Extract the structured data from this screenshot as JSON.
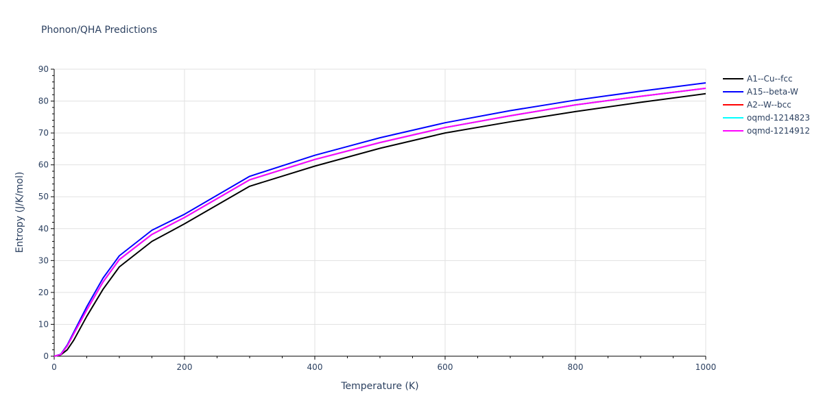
{
  "title": "Phonon/QHA Predictions",
  "chart_data": {
    "type": "line",
    "title": "Phonon/QHA Predictions",
    "xlabel": "Temperature (K)",
    "ylabel": "Entropy (J/K/mol)",
    "xlim": [
      0,
      1000
    ],
    "ylim": [
      0,
      90
    ],
    "xticks": [
      0,
      200,
      400,
      600,
      800,
      1000
    ],
    "yticks": [
      0,
      10,
      20,
      30,
      40,
      50,
      60,
      70,
      80,
      90
    ],
    "grid": true,
    "legend_position": "right",
    "x": [
      0,
      10,
      20,
      30,
      50,
      75,
      100,
      150,
      200,
      300,
      400,
      500,
      600,
      700,
      800,
      900,
      1000
    ],
    "series": [
      {
        "name": "A1--Cu--fcc",
        "color": "#000000",
        "values": [
          0,
          0.4,
          2.0,
          5.0,
          12.5,
          21.0,
          28.0,
          36.0,
          41.5,
          53.3,
          59.6,
          65.2,
          70.0,
          73.5,
          76.7,
          79.6,
          82.3
        ]
      },
      {
        "name": "A15--beta-W",
        "color": "#0000ff",
        "values": [
          0,
          0.6,
          3.5,
          7.5,
          15.5,
          24.5,
          31.5,
          39.5,
          44.5,
          56.4,
          63.0,
          68.5,
          73.2,
          77.0,
          80.3,
          83.1,
          85.7
        ]
      },
      {
        "name": "A2--W--bcc",
        "color": "#ff0000",
        "values": [
          0,
          0.5,
          3.2,
          7.0,
          14.5,
          23.3,
          30.3,
          38.2,
          43.5,
          55.3,
          61.7,
          67.0,
          71.7,
          75.4,
          78.8,
          81.5,
          84.0
        ]
      },
      {
        "name": "oqmd-1214823",
        "color": "#00ffff",
        "values": [
          0,
          0.5,
          3.2,
          7.0,
          14.5,
          23.3,
          30.3,
          38.2,
          43.5,
          55.3,
          61.7,
          67.0,
          71.7,
          75.4,
          78.8,
          81.5,
          84.0
        ]
      },
      {
        "name": "oqmd-1214912",
        "color": "#ff00ff",
        "values": [
          0,
          0.5,
          3.2,
          7.0,
          14.5,
          23.3,
          30.3,
          38.2,
          43.5,
          55.3,
          61.7,
          67.0,
          71.7,
          75.4,
          78.8,
          81.5,
          84.0
        ]
      }
    ]
  }
}
